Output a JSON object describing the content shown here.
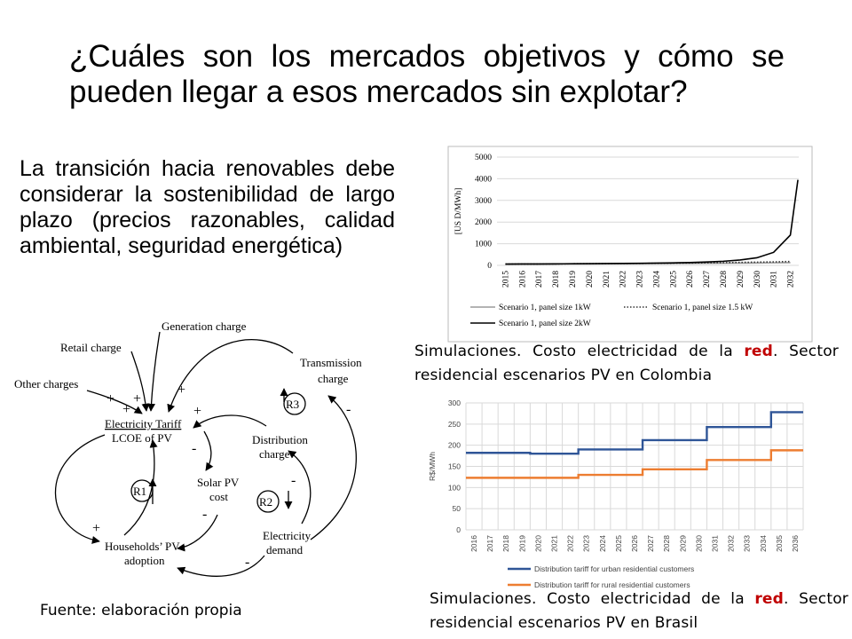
{
  "slide": {
    "title": "¿Cuáles son los mercados objetivos y cómo se pueden llegar a esos mercados sin explotar?",
    "intro": "La transición hacia renovables debe considerar la sostenibilidad de largo plazo (precios razonables, calidad ambiental, seguridad energética)",
    "fuente": "Fuente: elaboración propia",
    "caption1": {
      "pre": "Simulaciones. Costo electricidad de la ",
      "highlight": "red",
      "post": ". Sector residencial escenarios PV en Colombia"
    },
    "caption2": {
      "pre": "Simulaciones. Costo electricidad de la ",
      "highlight": "red",
      "post": ". Sector residencial escenarios PV en Brasil"
    }
  },
  "diagram": {
    "nodes": {
      "generation": "Generation charge",
      "retail": "Retail charge",
      "other": "Other charges",
      "transmission_1": "Transmission",
      "transmission_2": "charge",
      "tariff_1": "Electricity Tariff",
      "tariff_2": "LCOE of PV",
      "distribution_1": "Distribution",
      "distribution_2": "charge",
      "solar_1": "Solar PV",
      "solar_2": "cost",
      "households_1": "Households’ PV",
      "households_2": "adoption",
      "demand_1": "Electricity",
      "demand_2": "demand"
    },
    "loops": {
      "r1": "R1",
      "r2": "R2",
      "r3": "R3"
    },
    "signs": {
      "plus": "+",
      "minus": "-"
    }
  },
  "chart_data": [
    {
      "type": "line",
      "ylabel": "[US D/MWh]",
      "ylim": [
        0,
        5000
      ],
      "yticks": [
        "0",
        "1000",
        "2000",
        "3000",
        "4000",
        "5000"
      ],
      "categories": [
        "2015",
        "2016",
        "2017",
        "2018",
        "2019",
        "2020",
        "2021",
        "2022",
        "2023",
        "2024",
        "2025",
        "2026",
        "2027",
        "2028",
        "2029",
        "2030",
        "2031",
        "2032"
      ],
      "grid": true,
      "legend_position": "bottom",
      "series": [
        {
          "name": "Scenario 1, panel size 1kW",
          "color": "#9a9a9a",
          "style": "solid",
          "values": [
            60,
            62,
            64,
            66,
            68,
            70,
            72,
            75,
            78,
            82,
            86,
            90,
            95,
            100,
            106,
            112,
            118,
            125
          ]
        },
        {
          "name": "Scenario 1, panel size 1.5 kW",
          "color": "#333333",
          "style": "dotted",
          "values": [
            60,
            63,
            66,
            69,
            72,
            76,
            80,
            85,
            90,
            96,
            102,
            110,
            118,
            127,
            137,
            148,
            160,
            180
          ]
        },
        {
          "name": "Scenario 1, panel size 2kW",
          "color": "#000000",
          "style": "solid",
          "values": [
            60,
            63,
            66,
            70,
            74,
            78,
            83,
            89,
            96,
            105,
            116,
            131,
            155,
            190,
            250,
            350,
            600,
            1400
          ],
          "end_value": 3950
        }
      ]
    },
    {
      "type": "line",
      "ylabel": "R$/MWh",
      "ylim": [
        0,
        300
      ],
      "yticks": [
        "0",
        "50",
        "100",
        "150",
        "200",
        "250",
        "300"
      ],
      "categories": [
        "2016",
        "2017",
        "2018",
        "2019",
        "2020",
        "2021",
        "2022",
        "2023",
        "2024",
        "2025",
        "2026",
        "2027",
        "2028",
        "2029",
        "2030",
        "2031",
        "2032",
        "2033",
        "2034",
        "2035",
        "2036"
      ],
      "grid": true,
      "legend_position": "bottom",
      "series": [
        {
          "name": "Distribution tariff for urban residential customers",
          "color": "#2f5597",
          "values": [
            182,
            182,
            182,
            182,
            180,
            180,
            180,
            190,
            190,
            190,
            190,
            212,
            212,
            212,
            212,
            243,
            243,
            243,
            243,
            278,
            278
          ]
        },
        {
          "name": "Distribution tariff for rural residential customers",
          "color": "#ed7d31",
          "values": [
            123,
            123,
            123,
            123,
            123,
            123,
            123,
            130,
            130,
            130,
            130,
            143,
            143,
            143,
            143,
            165,
            165,
            165,
            165,
            188,
            188
          ]
        }
      ]
    }
  ]
}
